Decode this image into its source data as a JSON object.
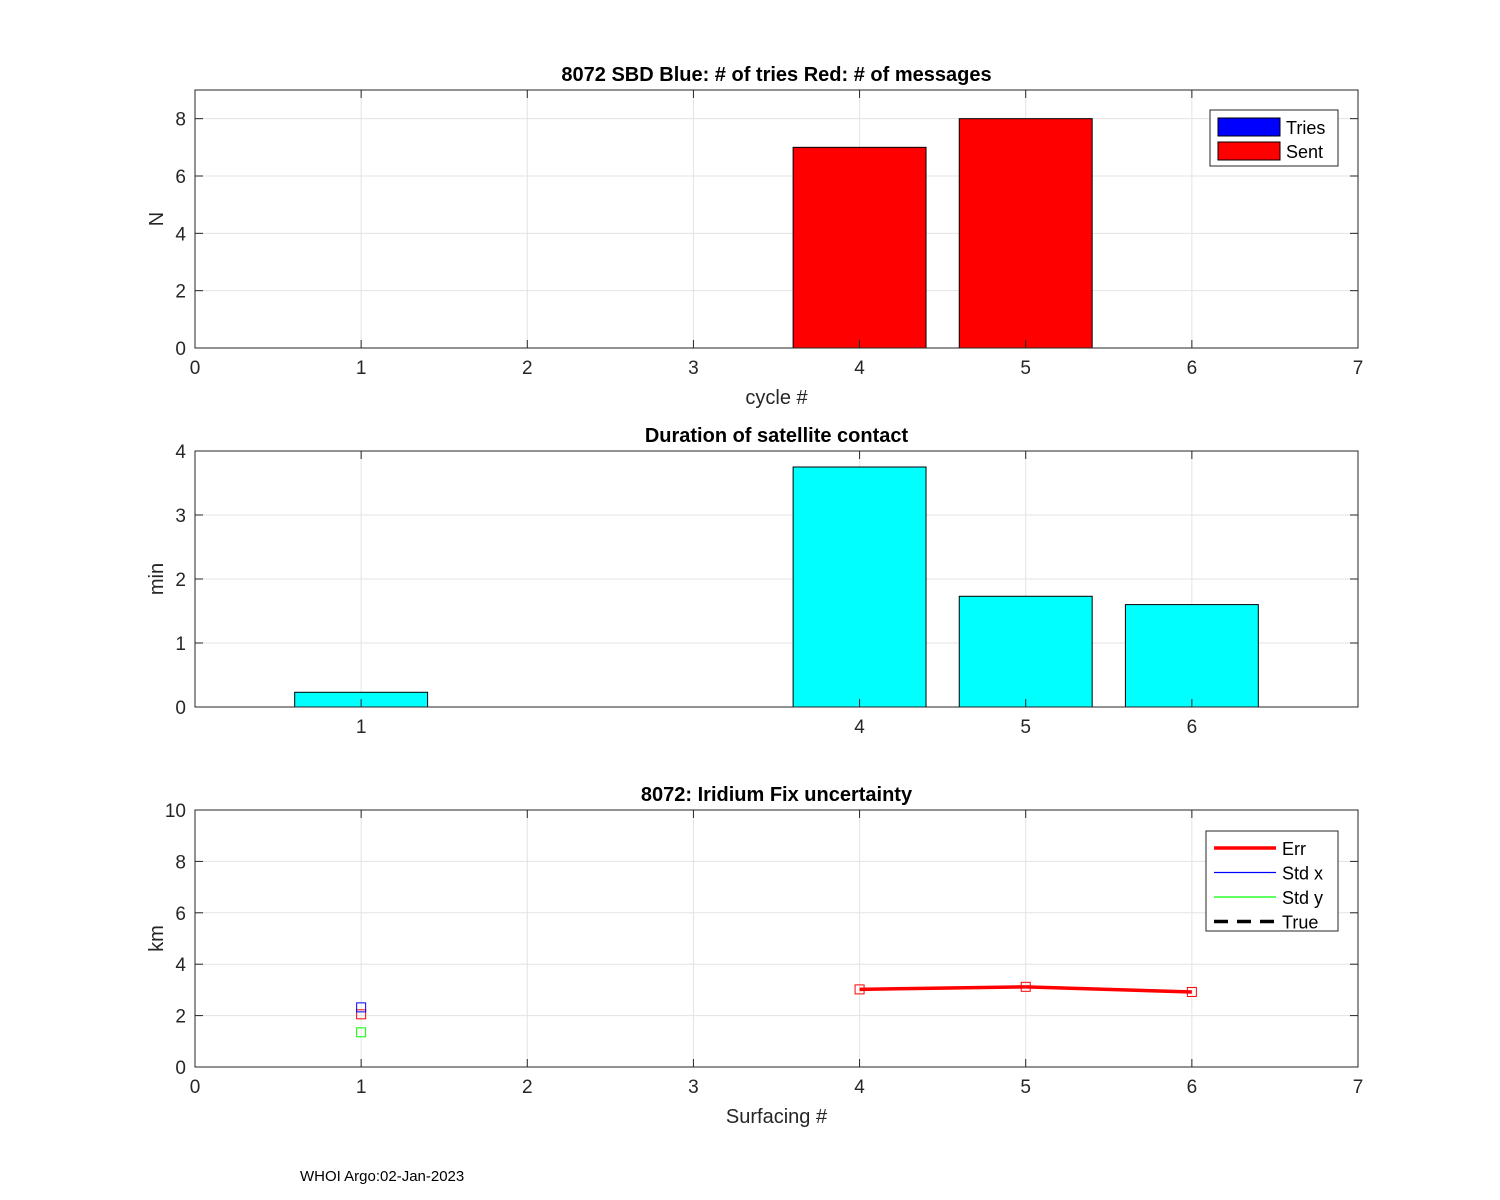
{
  "footer": "WHOI Argo:02-Jan-2023",
  "chart_data": [
    {
      "type": "bar",
      "title": "8072 SBD  Blue: # of tries   Red: # of messages",
      "xlabel": "cycle #",
      "ylabel": "N",
      "xlim": [
        0,
        7
      ],
      "ylim": [
        0,
        9
      ],
      "xticks": [
        0,
        1,
        2,
        3,
        4,
        5,
        6,
        7
      ],
      "yticks": [
        0,
        2,
        4,
        6,
        8
      ],
      "grid": true,
      "legend_position": "top-right",
      "x": [
        4,
        5
      ],
      "series": [
        {
          "name": "Tries",
          "color": "#0000ff",
          "values": [
            0,
            0
          ]
        },
        {
          "name": "Sent",
          "color": "#ff0000",
          "values": [
            7,
            8
          ]
        }
      ]
    },
    {
      "type": "bar",
      "title": "Duration of satellite contact",
      "xlabel": "",
      "ylabel": "min",
      "xlim": [
        0,
        7
      ],
      "ylim": [
        0,
        4
      ],
      "xticks": [
        1,
        4,
        5,
        6
      ],
      "yticks": [
        0,
        1,
        2,
        3,
        4
      ],
      "grid": true,
      "x": [
        1,
        4,
        5,
        6
      ],
      "series": [
        {
          "name": "Duration",
          "color": "#00ffff",
          "values": [
            0.23,
            3.75,
            1.73,
            1.6
          ]
        }
      ]
    },
    {
      "type": "line",
      "title": "8072: Iridium Fix uncertainty",
      "xlabel": "Surfacing #",
      "ylabel": "km",
      "xlim": [
        0,
        7
      ],
      "ylim": [
        0,
        10
      ],
      "xticks": [
        0,
        1,
        2,
        3,
        4,
        5,
        6,
        7
      ],
      "yticks": [
        0,
        2,
        4,
        6,
        8,
        10
      ],
      "grid": true,
      "legend_position": "top-right",
      "series": [
        {
          "name": "Err",
          "color": "#ff0000",
          "style": "solid-thick",
          "x": [
            1,
            4,
            5,
            6
          ],
          "y": [
            2.05,
            3.02,
            3.12,
            2.92
          ]
        },
        {
          "name": "Std x",
          "color": "#0000ff",
          "style": "solid",
          "x": [
            1
          ],
          "y": [
            2.32
          ]
        },
        {
          "name": "Std y",
          "color": "#00ff00",
          "style": "solid",
          "x": [
            1
          ],
          "y": [
            1.35
          ]
        },
        {
          "name": "True",
          "color": "#000000",
          "style": "dashed-thick",
          "x": [],
          "y": []
        }
      ]
    }
  ]
}
